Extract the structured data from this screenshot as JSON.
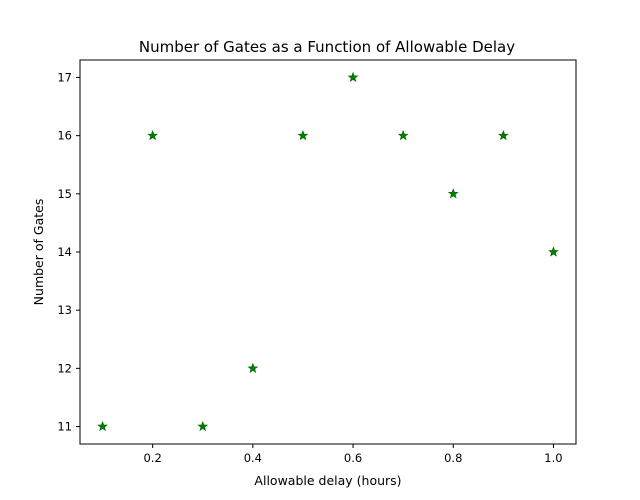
{
  "chart_data": {
    "type": "scatter",
    "title": "Number of Gates as a Function of Allowable Delay",
    "xlabel": "Allowable delay (hours)",
    "ylabel": "Number of Gates",
    "x": [
      0.1,
      0.2,
      0.3,
      0.4,
      0.5,
      0.6,
      0.7,
      0.8,
      0.9,
      1.0
    ],
    "y": [
      11,
      16,
      11,
      12,
      16,
      17,
      16,
      15,
      16,
      14
    ],
    "xlim": [
      0.055,
      1.045
    ],
    "ylim": [
      10.7,
      17.3
    ],
    "xticks": [
      0.2,
      0.4,
      0.6,
      0.8,
      1.0
    ],
    "xtick_labels": [
      "0.2",
      "0.4",
      "0.6",
      "0.8",
      "1.0"
    ],
    "yticks": [
      11,
      12,
      13,
      14,
      15,
      16,
      17
    ],
    "ytick_labels": [
      "11",
      "12",
      "13",
      "14",
      "15",
      "16",
      "17"
    ],
    "marker": "star",
    "marker_color": "#008000",
    "grid": false
  }
}
